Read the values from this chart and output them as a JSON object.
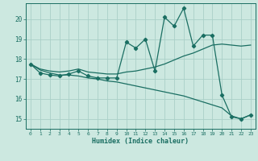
{
  "xlabel": "Humidex (Indice chaleur)",
  "bg_color": "#cce8e0",
  "grid_color": "#aad0c8",
  "line_color": "#1a6e62",
  "xlim": [
    -0.5,
    23.5
  ],
  "ylim": [
    14.5,
    20.8
  ],
  "xticks": [
    0,
    1,
    2,
    3,
    4,
    5,
    6,
    7,
    8,
    9,
    10,
    11,
    12,
    13,
    14,
    15,
    16,
    17,
    18,
    19,
    20,
    21,
    22,
    23
  ],
  "yticks": [
    15,
    16,
    17,
    18,
    19,
    20
  ],
  "line_volatile": {
    "x": [
      0,
      1,
      2,
      3,
      4,
      5,
      6,
      7,
      8,
      9,
      10,
      11,
      12,
      13,
      14,
      15,
      16,
      17,
      18,
      19,
      20,
      21,
      22,
      23
    ],
    "y": [
      17.75,
      17.3,
      17.2,
      17.15,
      17.25,
      17.4,
      17.15,
      17.05,
      17.05,
      17.05,
      18.85,
      18.55,
      19.0,
      17.4,
      20.1,
      19.65,
      20.55,
      18.65,
      19.2,
      19.2,
      16.2,
      15.1,
      15.0,
      15.2
    ]
  },
  "line_rising": {
    "x": [
      0,
      1,
      2,
      3,
      4,
      5,
      6,
      7,
      8,
      9,
      10,
      11,
      12,
      13,
      14,
      15,
      16,
      17,
      18,
      19,
      20,
      21,
      22,
      23
    ],
    "y": [
      17.75,
      17.5,
      17.4,
      17.35,
      17.4,
      17.5,
      17.35,
      17.3,
      17.25,
      17.25,
      17.35,
      17.4,
      17.5,
      17.6,
      17.75,
      17.95,
      18.15,
      18.3,
      18.5,
      18.7,
      18.75,
      18.7,
      18.65,
      18.7
    ]
  },
  "line_declining": {
    "x": [
      0,
      1,
      2,
      3,
      4,
      5,
      6,
      7,
      8,
      9,
      10,
      11,
      12,
      13,
      14,
      15,
      16,
      17,
      18,
      19,
      20,
      21,
      22,
      23
    ],
    "y": [
      17.75,
      17.45,
      17.3,
      17.2,
      17.2,
      17.15,
      17.05,
      17.0,
      16.9,
      16.85,
      16.75,
      16.65,
      16.55,
      16.45,
      16.35,
      16.25,
      16.15,
      16.0,
      15.85,
      15.7,
      15.55,
      15.15,
      15.0,
      15.2
    ]
  }
}
